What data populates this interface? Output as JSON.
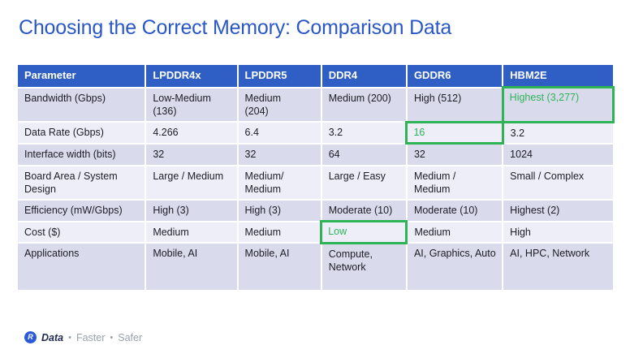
{
  "slide": {
    "title": "Choosing the Correct Memory: Comparison Data"
  },
  "table": {
    "columns": [
      "Parameter",
      "LPDDR4x",
      "LPDDR5",
      "DDR4",
      "GDDR6",
      "HBM2E"
    ],
    "rows": [
      {
        "param": "Bandwidth (Gbps)",
        "values": [
          "Low-Medium\n(136)",
          "Medium\n(204)",
          "Medium (200)",
          "High (512)",
          "Highest (3,277)"
        ],
        "highlight": [
          4
        ]
      },
      {
        "param": "Data Rate (Gbps)",
        "values": [
          "4.266",
          "6.4",
          "3.2",
          "16",
          "3.2"
        ],
        "highlight": [
          3
        ]
      },
      {
        "param": "Interface width (bits)",
        "values": [
          "32",
          "32",
          "64",
          "32",
          "1024"
        ],
        "highlight": []
      },
      {
        "param": "Board Area / System Design",
        "values": [
          "Large / Medium",
          "Medium/\nMedium",
          "Large / Easy",
          "Medium /\nMedium",
          "Small / Complex"
        ],
        "highlight": []
      },
      {
        "param": "Efficiency (mW/Gbps)",
        "values": [
          "High (3)",
          "High (3)",
          "Moderate (10)",
          "Moderate (10)",
          "Highest (2)"
        ],
        "highlight": []
      },
      {
        "param": "Cost ($)",
        "values": [
          "Medium",
          "Medium",
          "Low",
          "Medium",
          "High"
        ],
        "highlight": [
          2
        ]
      },
      {
        "param": "Applications",
        "values": [
          "Mobile, AI",
          "Mobile, AI",
          "Compute,\nNetwork",
          "AI, Graphics, Auto",
          "AI, HPC, Network"
        ],
        "highlight": []
      }
    ]
  },
  "footer": {
    "logo_letter": "R",
    "brand_segments": [
      "Data",
      "Faster",
      "Safer"
    ],
    "separator": "•"
  },
  "colors": {
    "title_blue": "#2a57c8",
    "header_bg": "#2f5ec4",
    "band_dark": "#d9dbec",
    "band_light": "#edeef7",
    "highlight_green": "#2eb457",
    "logo_blue": "#2b59d8"
  }
}
